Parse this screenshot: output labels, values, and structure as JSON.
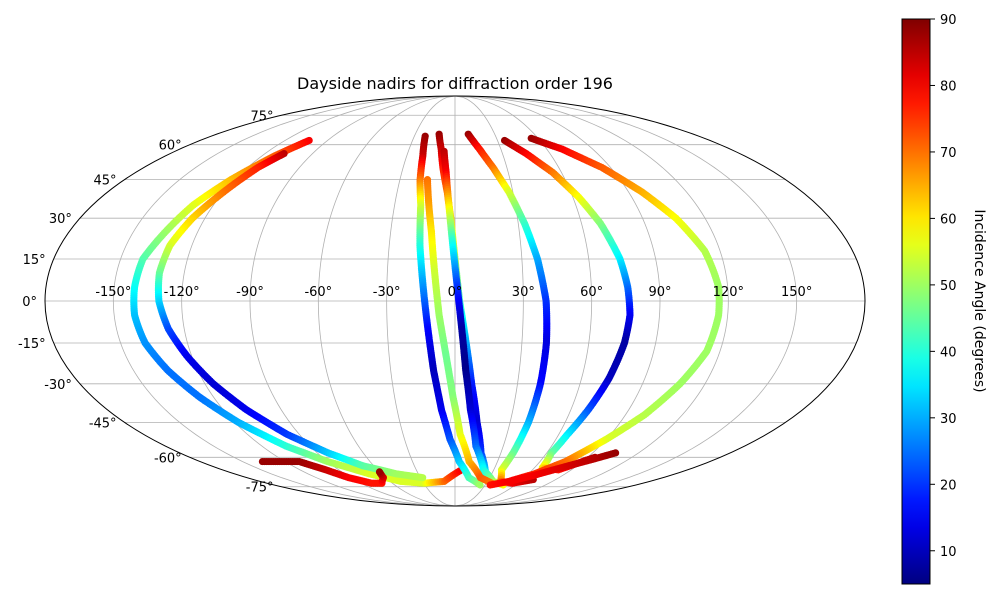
{
  "chart_data": {
    "type": "scatter",
    "projection": "mollweide",
    "title": "Dayside nadirs for diffraction order 196",
    "colorbar": {
      "label": "Incidence Angle (degrees)",
      "min": 5,
      "max": 90,
      "ticks": [
        "10",
        "20",
        "30",
        "40",
        "50",
        "60",
        "70",
        "80",
        "90"
      ],
      "colormap": "jet",
      "placement": "right"
    },
    "grid": true,
    "lon_ticks": [
      "-150°",
      "-120°",
      "-90°",
      "-60°",
      "-30°",
      "0°",
      "30°",
      "60°",
      "90°",
      "120°",
      "150°"
    ],
    "lat_ticks": [
      "75°",
      "60°",
      "45°",
      "30°",
      "15°",
      "0°",
      "-15°",
      "-30°",
      "-45°",
      "-60°",
      "-75°"
    ],
    "series": [
      {
        "points": [
          {
            "lon": -103,
            "lat": 62,
            "inc": 80
          },
          {
            "lon": -112,
            "lat": 55,
            "inc": 72
          },
          {
            "lon": -122,
            "lat": 45,
            "inc": 64
          },
          {
            "lon": -130,
            "lat": 35,
            "inc": 56
          },
          {
            "lon": -135,
            "lat": 25,
            "inc": 50
          },
          {
            "lon": -140,
            "lat": 15,
            "inc": 44
          },
          {
            "lon": -141,
            "lat": 5,
            "inc": 38
          },
          {
            "lon": -141,
            "lat": -5,
            "inc": 32
          },
          {
            "lon": -139,
            "lat": -15,
            "inc": 28
          },
          {
            "lon": -134,
            "lat": -25,
            "inc": 25
          },
          {
            "lon": -127,
            "lat": -35,
            "inc": 25
          },
          {
            "lon": -118,
            "lat": -45,
            "inc": 30
          },
          {
            "lon": -105,
            "lat": -55,
            "inc": 40
          },
          {
            "lon": -90,
            "lat": -62,
            "inc": 50
          },
          {
            "lon": -70,
            "lat": -68,
            "inc": 55
          },
          {
            "lon": -50,
            "lat": -72,
            "inc": 55
          },
          {
            "lon": -30,
            "lat": -73,
            "inc": 55
          },
          {
            "lon": -10,
            "lat": -72,
            "inc": 70
          },
          {
            "lon": 5,
            "lat": -66,
            "inc": 80
          }
        ]
      },
      {
        "points": [
          {
            "lon": -108,
            "lat": 56,
            "inc": 85
          },
          {
            "lon": -114,
            "lat": 50,
            "inc": 77
          },
          {
            "lon": -120,
            "lat": 40,
            "inc": 70
          },
          {
            "lon": -126,
            "lat": 30,
            "inc": 62
          },
          {
            "lon": -130,
            "lat": 20,
            "inc": 55
          },
          {
            "lon": -131,
            "lat": 10,
            "inc": 46
          },
          {
            "lon": -130,
            "lat": 0,
            "inc": 34
          },
          {
            "lon": -127,
            "lat": -10,
            "inc": 22
          },
          {
            "lon": -122,
            "lat": -20,
            "inc": 14
          },
          {
            "lon": -116,
            "lat": -30,
            "inc": 12
          },
          {
            "lon": -108,
            "lat": -40,
            "inc": 14
          },
          {
            "lon": -97,
            "lat": -50,
            "inc": 20
          },
          {
            "lon": -83,
            "lat": -58,
            "inc": 32
          },
          {
            "lon": -68,
            "lat": -64,
            "inc": 44
          },
          {
            "lon": -48,
            "lat": -68,
            "inc": 50
          },
          {
            "lon": -28,
            "lat": -70,
            "inc": 52
          }
        ]
      },
      {
        "points": [
          {
            "lon": -136,
            "lat": -62,
            "inc": 88
          },
          {
            "lon": -110,
            "lat": -62,
            "inc": 88
          },
          {
            "lon": -100,
            "lat": -66,
            "inc": 84
          },
          {
            "lon": -92,
            "lat": -70,
            "inc": 80
          },
          {
            "lon": -80,
            "lat": -73,
            "inc": 78
          },
          {
            "lon": -70,
            "lat": -73,
            "inc": 78
          },
          {
            "lon": -62,
            "lat": -70,
            "inc": 82
          },
          {
            "lon": -60,
            "lat": -67,
            "inc": 88
          }
        ]
      },
      {
        "points": [
          {
            "lon": -22,
            "lat": 64,
            "inc": 88
          },
          {
            "lon": -20,
            "lat": 55,
            "inc": 84
          },
          {
            "lon": -19,
            "lat": 45,
            "inc": 70
          },
          {
            "lon": -17,
            "lat": 35,
            "inc": 55
          },
          {
            "lon": -16,
            "lat": 20,
            "inc": 40
          },
          {
            "lon": -14,
            "lat": 5,
            "inc": 28
          },
          {
            "lon": -12,
            "lat": -10,
            "inc": 16
          },
          {
            "lon": -10,
            "lat": -25,
            "inc": 10
          },
          {
            "lon": -7,
            "lat": -40,
            "inc": 14
          },
          {
            "lon": -3,
            "lat": -52,
            "inc": 22
          },
          {
            "lon": 3,
            "lat": -62,
            "inc": 32
          },
          {
            "lon": 12,
            "lat": -70,
            "inc": 42
          },
          {
            "lon": 25,
            "lat": -74,
            "inc": 50
          }
        ]
      },
      {
        "points": [
          {
            "lon": -12,
            "lat": 65,
            "inc": 88
          },
          {
            "lon": -9,
            "lat": 58,
            "inc": 84
          },
          {
            "lon": -7,
            "lat": 50,
            "inc": 78
          },
          {
            "lon": -4,
            "lat": 40,
            "inc": 70
          },
          {
            "lon": -2,
            "lat": 30,
            "inc": 62
          },
          {
            "lon": 0,
            "lat": 15,
            "inc": 52
          },
          {
            "lon": 2,
            "lat": 0,
            "inc": 42
          },
          {
            "lon": 5,
            "lat": -15,
            "inc": 30
          },
          {
            "lon": 8,
            "lat": -30,
            "inc": 18
          },
          {
            "lon": 12,
            "lat": -45,
            "inc": 12
          },
          {
            "lon": 17,
            "lat": -58,
            "inc": 20
          },
          {
            "lon": 25,
            "lat": -68,
            "inc": 36
          },
          {
            "lon": 35,
            "lat": -73,
            "inc": 48
          }
        ]
      },
      {
        "points": [
          {
            "lon": -7,
            "lat": 57,
            "inc": 85
          },
          {
            "lon": -5,
            "lat": 48,
            "inc": 80
          },
          {
            "lon": -3,
            "lat": 35,
            "inc": 60
          },
          {
            "lon": -1,
            "lat": 20,
            "inc": 38
          },
          {
            "lon": 1,
            "lat": 5,
            "inc": 20
          },
          {
            "lon": 3,
            "lat": -10,
            "inc": 8
          },
          {
            "lon": 5,
            "lat": -25,
            "inc": 6
          },
          {
            "lon": 8,
            "lat": -40,
            "inc": 12
          },
          {
            "lon": 13,
            "lat": -55,
            "inc": 24
          },
          {
            "lon": 22,
            "lat": -66,
            "inc": 38
          },
          {
            "lon": 35,
            "lat": -72,
            "inc": 50
          },
          {
            "lon": 48,
            "lat": -74,
            "inc": 58
          }
        ]
      },
      {
        "points": [
          {
            "lon": -15,
            "lat": 45,
            "inc": 70
          },
          {
            "lon": -13,
            "lat": 35,
            "inc": 66
          },
          {
            "lon": -11,
            "lat": 25,
            "inc": 60
          },
          {
            "lon": -9,
            "lat": 10,
            "inc": 54
          },
          {
            "lon": -7,
            "lat": -5,
            "inc": 50
          },
          {
            "lon": -4,
            "lat": -20,
            "inc": 46
          },
          {
            "lon": -1,
            "lat": -35,
            "inc": 48
          },
          {
            "lon": 3,
            "lat": -50,
            "inc": 56
          },
          {
            "lon": 10,
            "lat": -62,
            "inc": 64
          },
          {
            "lon": 22,
            "lat": -70,
            "inc": 72
          },
          {
            "lon": 35,
            "lat": -73,
            "inc": 70
          }
        ]
      },
      {
        "points": [
          {
            "lon": 10,
            "lat": 65,
            "inc": 88
          },
          {
            "lon": 16,
            "lat": 58,
            "inc": 78
          },
          {
            "lon": 22,
            "lat": 50,
            "inc": 70
          },
          {
            "lon": 28,
            "lat": 40,
            "inc": 55
          },
          {
            "lon": 33,
            "lat": 28,
            "inc": 42
          },
          {
            "lon": 37,
            "lat": 15,
            "inc": 30
          },
          {
            "lon": 40,
            "lat": 0,
            "inc": 20
          },
          {
            "lon": 41,
            "lat": -15,
            "inc": 13
          },
          {
            "lon": 41,
            "lat": -30,
            "inc": 16
          },
          {
            "lon": 40,
            "lat": -45,
            "inc": 30
          },
          {
            "lon": 38,
            "lat": -58,
            "inc": 45
          },
          {
            "lon": 36,
            "lat": -66,
            "inc": 55
          },
          {
            "lon": 42,
            "lat": -72,
            "inc": 70
          },
          {
            "lon": 55,
            "lat": -73,
            "inc": 80
          },
          {
            "lon": 70,
            "lat": -71,
            "inc": 85
          }
        ]
      },
      {
        "points": [
          {
            "lon": 35,
            "lat": 62,
            "inc": 88
          },
          {
            "lon": 45,
            "lat": 56,
            "inc": 80
          },
          {
            "lon": 55,
            "lat": 48,
            "inc": 70
          },
          {
            "lon": 63,
            "lat": 38,
            "inc": 58
          },
          {
            "lon": 69,
            "lat": 28,
            "inc": 48
          },
          {
            "lon": 74,
            "lat": 15,
            "inc": 36
          },
          {
            "lon": 76,
            "lat": 5,
            "inc": 25
          },
          {
            "lon": 77,
            "lat": -5,
            "inc": 15
          },
          {
            "lon": 76,
            "lat": -15,
            "inc": 8
          },
          {
            "lon": 73,
            "lat": -28,
            "inc": 10
          },
          {
            "lon": 69,
            "lat": -40,
            "inc": 22
          },
          {
            "lon": 65,
            "lat": -50,
            "inc": 35
          },
          {
            "lon": 63,
            "lat": -58,
            "inc": 45
          },
          {
            "lon": 66,
            "lat": -65,
            "inc": 60
          },
          {
            "lon": 80,
            "lat": -66,
            "inc": 78
          },
          {
            "lon": 95,
            "lat": -60,
            "inc": 86
          }
        ]
      },
      {
        "points": [
          {
            "lon": 55,
            "lat": 63,
            "inc": 88
          },
          {
            "lon": 70,
            "lat": 58,
            "inc": 80
          },
          {
            "lon": 85,
            "lat": 50,
            "inc": 72
          },
          {
            "lon": 97,
            "lat": 40,
            "inc": 65
          },
          {
            "lon": 106,
            "lat": 30,
            "inc": 58
          },
          {
            "lon": 113,
            "lat": 18,
            "inc": 52
          },
          {
            "lon": 116,
            "lat": 5,
            "inc": 50
          },
          {
            "lon": 116,
            "lat": -5,
            "inc": 50
          },
          {
            "lon": 114,
            "lat": -18,
            "inc": 50
          },
          {
            "lon": 108,
            "lat": -30,
            "inc": 50
          },
          {
            "lon": 100,
            "lat": -42,
            "inc": 52
          },
          {
            "lon": 90,
            "lat": -52,
            "inc": 55
          },
          {
            "lon": 78,
            "lat": -62,
            "inc": 70
          },
          {
            "lon": 65,
            "lat": -68,
            "inc": 76
          },
          {
            "lon": 50,
            "lat": -72,
            "inc": 80
          }
        ]
      },
      {
        "points": [
          {
            "lon": 35,
            "lat": -74,
            "inc": 78
          },
          {
            "lon": 50,
            "lat": -72,
            "inc": 80
          },
          {
            "lon": 65,
            "lat": -69,
            "inc": 80
          },
          {
            "lon": 80,
            "lat": -65,
            "inc": 82
          },
          {
            "lon": 95,
            "lat": -61,
            "inc": 85
          },
          {
            "lon": 105,
            "lat": -58,
            "inc": 88
          }
        ]
      }
    ]
  }
}
